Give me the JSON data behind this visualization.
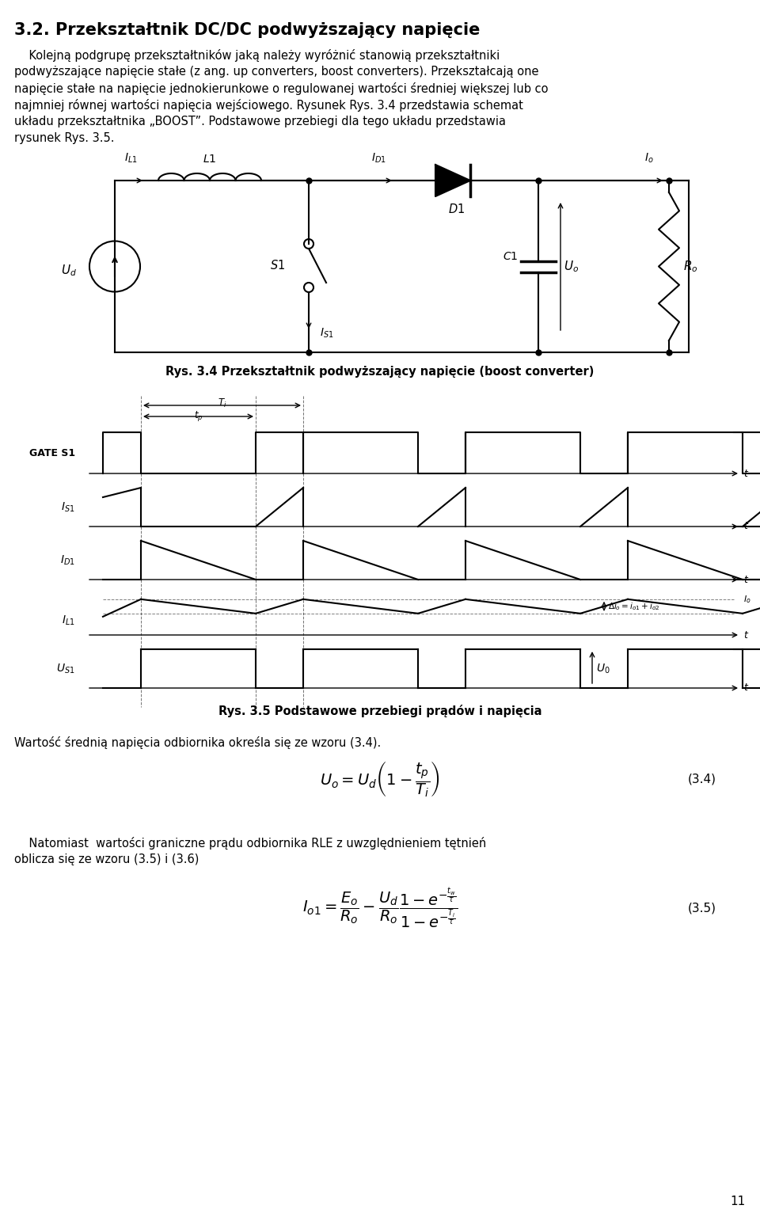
{
  "bg_color": "#ffffff",
  "page_width": 9.6,
  "page_height": 15.27,
  "title": "3.2. Przekształtnik DC/DC podwyższający napięcie",
  "caption34": "Rys. 3.4 Przekształtnik podwyższający napięcie (boost converter)",
  "caption35": "Rys. 3.5 Podstawowe przebiegi prądów i napięcia",
  "para2": "Wartość średnią napięcia odbiornika określa się ze wzoru (3.4).",
  "eq34_label": "(3.4)",
  "eq35_label": "(3.5)",
  "page_num": "11"
}
